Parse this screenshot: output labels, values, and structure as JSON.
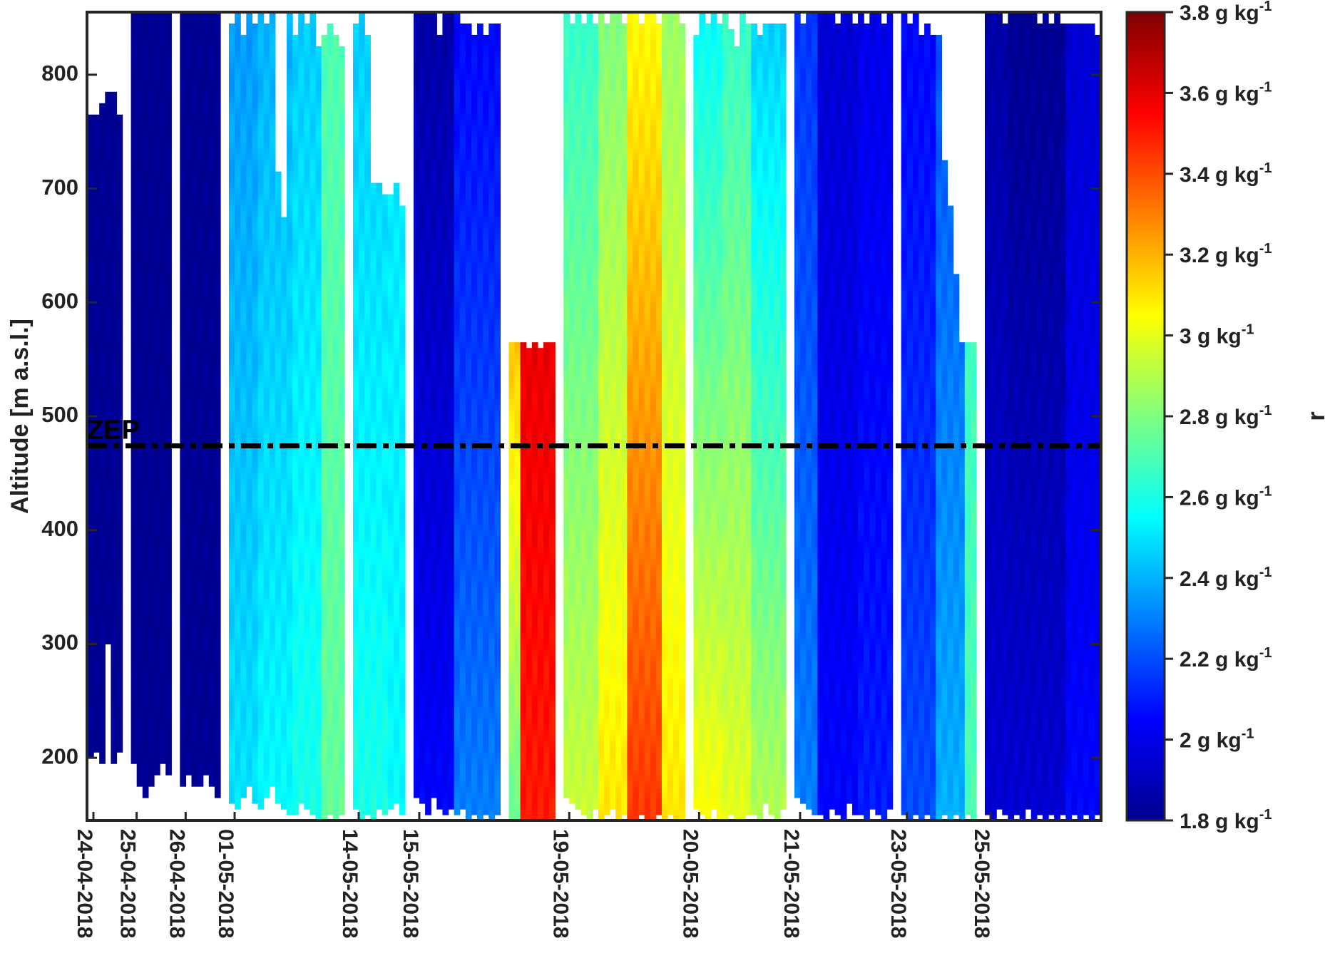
{
  "chart_data": {
    "type": "heatmap",
    "title": "",
    "xlabel": "",
    "ylabel": "Altitude [m a.s.l.]",
    "ylim": [
      145,
      855
    ],
    "yticks": [
      200,
      300,
      400,
      500,
      600,
      700,
      800
    ],
    "grid": false,
    "x_tick_labels": [
      "24-04-2018",
      "25-04-2018",
      "26-04-2018",
      "01-05-2018",
      "14-05-2018",
      "15-05-2018",
      "19-05-2018",
      "20-05-2018",
      "21-05-2018",
      "23-05-2018",
      "25-05-2018"
    ],
    "colorbar": {
      "label": "r",
      "unit_base": "g kg",
      "unit_exp": "-1",
      "range": [
        1.8,
        3.8
      ],
      "ticks": [
        1.8,
        2,
        2.2,
        2.4,
        2.6,
        2.8,
        3,
        3.2,
        3.4,
        3.6,
        3.8
      ],
      "tick_labels": [
        "1.8",
        "2",
        "2.2",
        "2.4",
        "2.6",
        "2.8",
        "3",
        "3.2",
        "3.4",
        "3.6",
        "3.8"
      ],
      "colormap": "jet"
    },
    "reference_line": {
      "label": "ZEP",
      "altitude": 474,
      "style": "dash-dot",
      "color": "#000000"
    },
    "profile_groups": [
      {
        "date": "24-04-2018",
        "segments": [
          {
            "n": 6,
            "bottom": [
              200,
              205,
              195,
              300,
              195,
              205
            ],
            "top": [
              765,
              765,
              775,
              785,
              785,
              765
            ],
            "r_low": 1.8,
            "r_high": 1.8
          }
        ]
      },
      {
        "date": "25-04-2018",
        "segments": [
          {
            "n": 7,
            "bottom": [
              195,
              175,
              165,
              175,
              185,
              195,
              185
            ],
            "top": [
              855,
              855,
              855,
              855,
              855,
              855,
              855
            ],
            "r_low": 1.8,
            "r_high": 1.8
          }
        ]
      },
      {
        "date": "26-04-2018",
        "segments": [
          {
            "n": 7,
            "bottom": [
              175,
              185,
              175,
              175,
              185,
              175,
              165
            ],
            "top": [
              855,
              855,
              855,
              855,
              855,
              855,
              855
            ],
            "r_low": 1.8,
            "r_high": 1.8
          }
        ]
      },
      {
        "date": "01-05-2018",
        "segments": [
          {
            "n": 5,
            "bottom": [
              160,
              155,
              165,
              175,
              160
            ],
            "top": [
              845,
              855,
              835,
              855,
              845
            ],
            "r_low": 2.5,
            "r_high": 2.35
          },
          {
            "n": 6,
            "bottom": [
              155,
              165,
              175,
              160,
              155,
              150
            ],
            "top": [
              855,
              845,
              855,
              715,
              675,
              855
            ],
            "r_low": 2.55,
            "r_high": 2.4
          },
          {
            "n": 5,
            "bottom": [
              150,
              160,
              155,
              150,
              145
            ],
            "top": [
              835,
              855,
              845,
              855,
              825
            ],
            "r_low": 2.6,
            "r_high": 2.45
          },
          {
            "n": 4,
            "bottom": [
              145,
              150,
              145,
              150
            ],
            "top": [
              835,
              845,
              835,
              825
            ],
            "r_low": 2.75,
            "r_high": 2.7
          }
        ]
      },
      {
        "date": "14-05-2018",
        "segments": [
          {
            "n": 6,
            "bottom": [
              155,
              145,
              150,
              145,
              155,
              150
            ],
            "top": [
              845,
              855,
              835,
              705,
              705,
              695
            ],
            "r_low": 2.6,
            "r_high": 2.45
          },
          {
            "n": 3,
            "bottom": [
              155,
              160,
              150
            ],
            "top": [
              695,
              705,
              685
            ],
            "r_low": 2.55,
            "r_high": 2.5
          }
        ]
      },
      {
        "date": "15-05-2018",
        "segments": [
          {
            "n": 7,
            "bottom": [
              165,
              160,
              150,
              165,
              155,
              150,
              155
            ],
            "top": [
              855,
              855,
              855,
              855,
              835,
              855,
              855
            ],
            "r_low": 2.05,
            "r_high": 1.85
          },
          {
            "n": 8,
            "bottom": [
              150,
              155,
              145,
              150,
              145,
              150,
              145,
              150
            ],
            "top": [
              855,
              845,
              845,
              835,
              845,
              835,
              845,
              845
            ],
            "r_low": 2.3,
            "r_high": 2.05
          }
        ]
      },
      {
        "date": "15-05-2018b",
        "segments": [
          {
            "n": 2,
            "bottom": [
              145,
              145
            ],
            "top": [
              565,
              565
            ],
            "r_low": 2.75,
            "r_high": 3.45
          },
          {
            "n": 6,
            "bottom": [
              145,
              145,
              145,
              145,
              145,
              145
            ],
            "top": [
              565,
              560,
              565,
              560,
              565,
              565
            ],
            "r_low": 3.5,
            "r_high": 3.65
          }
        ]
      },
      {
        "date": "19-05-2018",
        "segments": [
          {
            "n": 6,
            "bottom": [
              165,
              160,
              155,
              150,
              145,
              155
            ],
            "top": [
              855,
              845,
              855,
              845,
              855,
              845
            ],
            "r_low": 2.95,
            "r_high": 2.65
          },
          {
            "n": 5,
            "bottom": [
              145,
              150,
              155,
              145,
              150
            ],
            "top": [
              855,
              845,
              855,
              855,
              845
            ],
            "r_low": 3.1,
            "r_high": 2.8
          },
          {
            "n": 6,
            "bottom": [
              145,
              145,
              150,
              145,
              145,
              150
            ],
            "top": [
              855,
              855,
              845,
              855,
              855,
              845
            ],
            "r_low": 3.45,
            "r_high": 3.05
          },
          {
            "n": 4,
            "bottom": [
              145,
              150,
              145,
              145
            ],
            "top": [
              855,
              855,
              855,
              845
            ],
            "r_low": 3.1,
            "r_high": 2.85
          }
        ]
      },
      {
        "date": "20-05-2018",
        "segments": [
          {
            "n": 5,
            "bottom": [
              155,
              150,
              145,
              155,
              145
            ],
            "top": [
              835,
              855,
              845,
              855,
              845
            ],
            "r_low": 3.05,
            "r_high": 2.55
          },
          {
            "n": 5,
            "bottom": [
              145,
              150,
              145,
              145,
              150
            ],
            "top": [
              855,
              840,
              825,
              855,
              845
            ],
            "r_low": 3.0,
            "r_high": 2.65
          },
          {
            "n": 6,
            "bottom": [
              150,
              145,
              160,
              150,
              145,
              155
            ],
            "top": [
              845,
              835,
              845,
              845,
              845,
              845
            ],
            "r_low": 2.9,
            "r_high": 2.45
          }
        ]
      },
      {
        "date": "21-05-2018",
        "segments": [
          {
            "n": 4,
            "bottom": [
              165,
              160,
              155,
              150
            ],
            "top": [
              855,
              845,
              855,
              855
            ],
            "r_low": 2.3,
            "r_high": 2.15
          },
          {
            "n": 7,
            "bottom": [
              150,
              145,
              155,
              150,
              145,
              160,
              150
            ],
            "top": [
              855,
              855,
              855,
              845,
              855,
              855,
              845
            ],
            "r_low": 2.05,
            "r_high": 1.95
          },
          {
            "n": 6,
            "bottom": [
              150,
              145,
              155,
              150,
              145,
              155
            ],
            "top": [
              855,
              845,
              855,
              855,
              845,
              855
            ],
            "r_low": 2.1,
            "r_high": 2.0
          }
        ]
      },
      {
        "date": "23-05-2018",
        "segments": [
          {
            "n": 6,
            "bottom": [
              150,
              145,
              150,
              145,
              150,
              145
            ],
            "top": [
              855,
              845,
              855,
              835,
              845,
              835
            ],
            "r_low": 2.2,
            "r_high": 2.05
          },
          {
            "n": 5,
            "bottom": [
              145,
              150,
              145,
              150,
              145
            ],
            "top": [
              835,
              725,
              685,
              625,
              565
            ],
            "r_low": 2.4,
            "r_high": 2.2
          },
          {
            "n": 2,
            "bottom": [
              150,
              145
            ],
            "top": [
              565,
              565
            ],
            "r_low": 2.7,
            "r_high": 2.65
          }
        ]
      },
      {
        "date": "25-05-2018",
        "segments": [
          {
            "n": 4,
            "bottom": [
              150,
              145,
              155,
              150
            ],
            "top": [
              855,
              855,
              855,
              845
            ],
            "r_low": 1.95,
            "r_high": 1.85
          },
          {
            "n": 10,
            "bottom": [
              145,
              150,
              145,
              155,
              145,
              150,
              145,
              150,
              145,
              150
            ],
            "top": [
              855,
              855,
              855,
              855,
              855,
              845,
              855,
              845,
              855,
              845
            ],
            "r_low": 1.95,
            "r_high": 1.8
          },
          {
            "n": 6,
            "bottom": [
              145,
              150,
              145,
              150,
              145,
              150
            ],
            "top": [
              845,
              845,
              845,
              845,
              845,
              835
            ],
            "r_low": 2.05,
            "r_high": 1.95
          }
        ]
      }
    ]
  }
}
